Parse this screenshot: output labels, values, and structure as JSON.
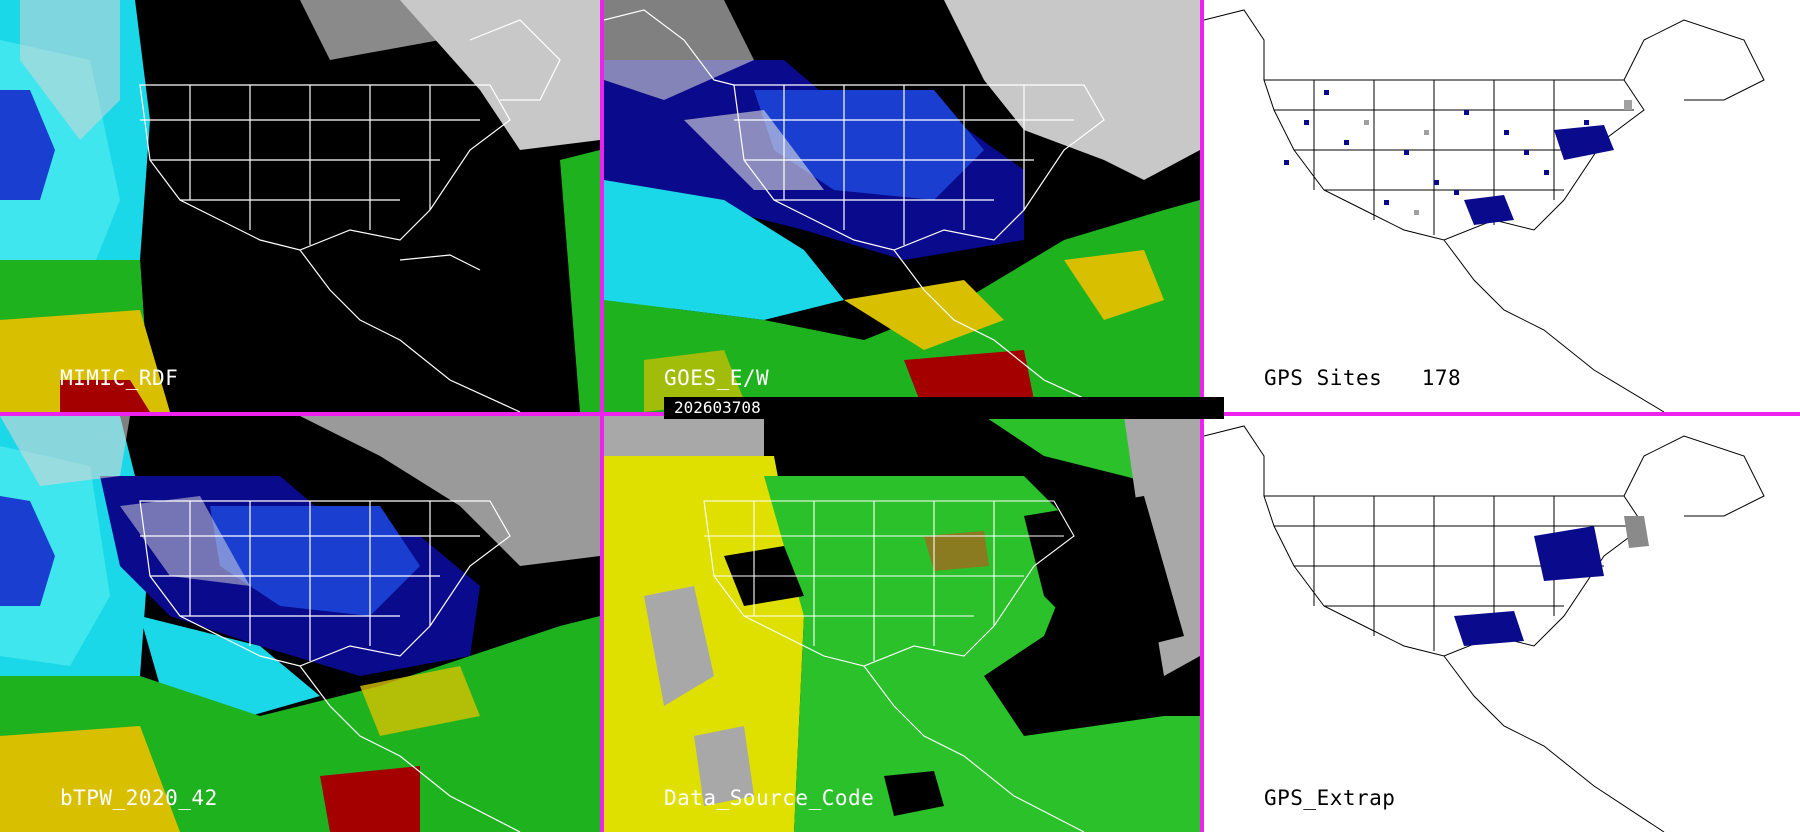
{
  "panels": {
    "mimic_rdf": {
      "label": "MIMIC_RDF"
    },
    "goes_ew": {
      "label": "GOES_E/W"
    },
    "gps_sites": {
      "label": "GPS Sites",
      "count": "178"
    },
    "btpw": {
      "label": "bTPW_2020_42"
    },
    "data_source_code": {
      "label": "Data_Source_Code"
    },
    "gps_extrap": {
      "label": "GPS_Extrap"
    }
  },
  "timestamp": "202603708",
  "colors": {
    "separator": "#ee22ee",
    "deep_blue": "#0a0a8c",
    "blue": "#1a3fd0",
    "cyan": "#1ad8e8",
    "green": "#1fb21f",
    "yellow": "#d8c000",
    "red": "#a40000",
    "gray": "#a0a0a0",
    "light_gray": "#d6d6d6",
    "source_yellow": "#e0e000",
    "source_green": "#2bc12b",
    "source_gray": "#a8a8a8"
  },
  "icons": {
    "map_outline": "continental-outline-map",
    "gps_site_marker": "square-marker"
  }
}
